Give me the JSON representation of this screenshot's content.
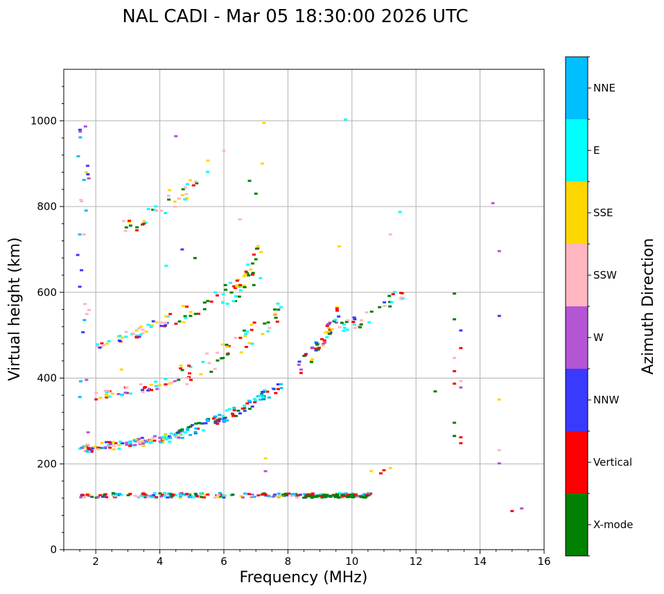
{
  "chart_data": {
    "type": "scatter",
    "title": "NAL CADI - Mar 05 18:30:00 2026 UTC",
    "xlabel": "Frequency (MHz)",
    "ylabel": "Virtual height (km)",
    "xlim": [
      1,
      16
    ],
    "ylim": [
      0,
      1120
    ],
    "xticks": [
      2,
      4,
      6,
      8,
      10,
      12,
      14,
      16
    ],
    "yticks": [
      0,
      200,
      400,
      600,
      800,
      1000
    ],
    "grid": true,
    "colorbar": {
      "title": "Azimuth Direction",
      "categories": [
        {
          "name": "X-mode",
          "color": "#008000"
        },
        {
          "name": "Vertical",
          "color": "#ff0000"
        },
        {
          "name": "NNW",
          "color": "#3a3aff"
        },
        {
          "name": "W",
          "color": "#b455d4"
        },
        {
          "name": "SSW",
          "color": "#ffb6c1"
        },
        {
          "name": "SSE",
          "color": "#ffd700"
        },
        {
          "name": "E",
          "color": "#00ffff"
        },
        {
          "name": "NNE",
          "color": "#00bfff"
        }
      ]
    },
    "traces": [
      {
        "f0": 1.5,
        "f1": 10.6,
        "h0": 125,
        "h1": 125,
        "cats": [
          1,
          6,
          2,
          7,
          5,
          4,
          0,
          3
        ],
        "n": 160,
        "jitter": 4
      },
      {
        "f0": 1.5,
        "f1": 10.6,
        "h0": 129,
        "h1": 129,
        "cats": [
          0,
          1,
          6,
          7
        ],
        "n": 80,
        "jitter": 3
      },
      {
        "f0": 8.5,
        "f1": 10.6,
        "h0": 125,
        "h1": 125,
        "cats": [
          0,
          0,
          0,
          1
        ],
        "n": 45,
        "jitter": 4
      },
      {
        "f0": 1.5,
        "f1": 4.8,
        "h0": 235,
        "h1": 268,
        "cats": [
          6,
          1,
          4,
          5,
          7,
          2,
          3
        ],
        "n": 110,
        "jitter": 10
      },
      {
        "f0": 4.5,
        "f1": 7.8,
        "h0": 268,
        "h1": 385,
        "cats": [
          0,
          6,
          1,
          7,
          2
        ],
        "n": 95,
        "jitter": 12
      },
      {
        "f0": 2.0,
        "f1": 4.5,
        "h0": 360,
        "h1": 395,
        "cats": [
          6,
          1,
          4,
          2,
          3,
          5
        ],
        "n": 40,
        "jitter": 10
      },
      {
        "f0": 4.5,
        "f1": 7.8,
        "h0": 400,
        "h1": 560,
        "cats": [
          0,
          1,
          6,
          5,
          4
        ],
        "n": 55,
        "jitter": 25
      },
      {
        "f0": 2.0,
        "f1": 4.5,
        "h0": 478,
        "h1": 545,
        "cats": [
          1,
          6,
          4,
          2,
          5
        ],
        "n": 45,
        "jitter": 12
      },
      {
        "f0": 4.5,
        "f1": 7.2,
        "h0": 545,
        "h1": 650,
        "cats": [
          0,
          1,
          6,
          5
        ],
        "n": 40,
        "jitter": 25
      },
      {
        "f0": 2.8,
        "f1": 5.5,
        "h0": 745,
        "h1": 880,
        "cats": [
          6,
          1,
          5,
          4,
          0
        ],
        "n": 35,
        "jitter": 20
      },
      {
        "f0": 6.3,
        "f1": 7.3,
        "h0": 600,
        "h1": 720,
        "cats": [
          0,
          6,
          1,
          5
        ],
        "n": 22,
        "jitter": 25
      },
      {
        "f0": 8.3,
        "f1": 9.6,
        "h0": 420,
        "h1": 560,
        "cats": [
          2,
          6,
          0,
          1,
          3,
          5
        ],
        "n": 45,
        "jitter": 18
      },
      {
        "f0": 9.6,
        "f1": 11.6,
        "h0": 510,
        "h1": 600,
        "cats": [
          0,
          1,
          6,
          2,
          4
        ],
        "n": 35,
        "jitter": 18
      },
      {
        "f0": 1.4,
        "f1": 1.8,
        "h0": 120,
        "h1": 1000,
        "cats": [
          7,
          2,
          3,
          4
        ],
        "n": 25,
        "jitter": 0
      }
    ],
    "isolated": [
      {
        "f": 7.2,
        "h": 900,
        "c": 5
      },
      {
        "f": 7.25,
        "h": 995,
        "c": 5
      },
      {
        "f": 9.8,
        "h": 1003,
        "c": 6
      },
      {
        "f": 11.5,
        "h": 787,
        "c": 6
      },
      {
        "f": 11.2,
        "h": 735,
        "c": 4
      },
      {
        "f": 9.6,
        "h": 707,
        "c": 5
      },
      {
        "f": 14.4,
        "h": 808,
        "c": 3
      },
      {
        "f": 14.6,
        "h": 696,
        "c": 3
      },
      {
        "f": 14.6,
        "h": 545,
        "c": 2
      },
      {
        "f": 13.2,
        "h": 597,
        "c": 0
      },
      {
        "f": 13.2,
        "h": 537,
        "c": 0
      },
      {
        "f": 13.4,
        "h": 511,
        "c": 2
      },
      {
        "f": 13.4,
        "h": 470,
        "c": 1
      },
      {
        "f": 13.2,
        "h": 447,
        "c": 4
      },
      {
        "f": 13.2,
        "h": 416,
        "c": 1
      },
      {
        "f": 13.4,
        "h": 393,
        "c": 4
      },
      {
        "f": 13.2,
        "h": 387,
        "c": 1
      },
      {
        "f": 13.4,
        "h": 378,
        "c": 3
      },
      {
        "f": 12.6,
        "h": 369,
        "c": 0
      },
      {
        "f": 13.2,
        "h": 296,
        "c": 0
      },
      {
        "f": 13.4,
        "h": 262,
        "c": 1
      },
      {
        "f": 13.2,
        "h": 265,
        "c": 0
      },
      {
        "f": 13.4,
        "h": 248,
        "c": 1
      },
      {
        "f": 14.6,
        "h": 350,
        "c": 5
      },
      {
        "f": 14.6,
        "h": 232,
        "c": 4
      },
      {
        "f": 14.6,
        "h": 201,
        "c": 3
      },
      {
        "f": 15.0,
        "h": 90,
        "c": 1
      },
      {
        "f": 15.3,
        "h": 96,
        "c": 3
      },
      {
        "f": 11.0,
        "h": 185,
        "c": 1
      },
      {
        "f": 11.2,
        "h": 190,
        "c": 5
      },
      {
        "f": 10.9,
        "h": 178,
        "c": 1
      },
      {
        "f": 10.6,
        "h": 183,
        "c": 5
      },
      {
        "f": 7.3,
        "h": 213,
        "c": 5
      },
      {
        "f": 7.3,
        "h": 183,
        "c": 3
      },
      {
        "f": 3.5,
        "h": 760,
        "c": 1
      },
      {
        "f": 4.2,
        "h": 662,
        "c": 6
      },
      {
        "f": 4.7,
        "h": 700,
        "c": 2
      },
      {
        "f": 5.1,
        "h": 680,
        "c": 0
      },
      {
        "f": 4.5,
        "h": 964,
        "c": 3
      },
      {
        "f": 5.5,
        "h": 907,
        "c": 5
      },
      {
        "f": 6.0,
        "h": 930,
        "c": 4
      },
      {
        "f": 6.8,
        "h": 860,
        "c": 0
      },
      {
        "f": 7.0,
        "h": 830,
        "c": 0
      },
      {
        "f": 6.5,
        "h": 770,
        "c": 4
      },
      {
        "f": 1.7,
        "h": 880,
        "c": 5
      },
      {
        "f": 1.5,
        "h": 735,
        "c": 7
      },
      {
        "f": 1.5,
        "h": 613,
        "c": 2
      },
      {
        "f": 1.6,
        "h": 507,
        "c": 2
      },
      {
        "f": 2.8,
        "h": 420,
        "c": 5
      },
      {
        "f": 3.9,
        "h": 790,
        "c": 4
      },
      {
        "f": 4.3,
        "h": 838,
        "c": 5
      }
    ]
  }
}
